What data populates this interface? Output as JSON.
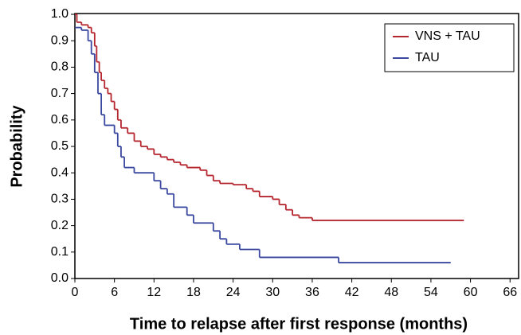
{
  "chart_data": {
    "type": "step",
    "xlabel": "Time to relapse after first response (months)",
    "ylabel": "Probability",
    "xlim": [
      0,
      67.3
    ],
    "ylim": [
      0,
      1
    ],
    "xticks": [
      0,
      6,
      12,
      18,
      24,
      30,
      36,
      42,
      48,
      54,
      60,
      66
    ],
    "yticks": [
      {
        "value": 0,
        "label": "0.0"
      },
      0.1,
      0.2,
      0.3,
      0.4,
      0.5,
      0.6,
      0.7,
      0.8,
      0.9,
      {
        "value": 1,
        "label": "1.0"
      }
    ],
    "legend": "upper right",
    "series": [
      {
        "name": "VNS + TAU",
        "color": "#b5262f",
        "x": [
          0,
          0.3,
          1,
          2,
          2.5,
          3,
          3.3,
          3.7,
          4,
          4.5,
          5,
          5.5,
          6,
          6.5,
          7,
          8,
          9,
          10,
          11,
          12,
          13,
          14,
          15,
          16,
          17,
          19,
          20,
          21,
          22,
          24,
          26,
          27,
          28,
          30,
          31,
          32,
          33,
          34,
          36,
          59
        ],
        "values": [
          1.0,
          0.97,
          0.96,
          0.95,
          0.93,
          0.88,
          0.82,
          0.78,
          0.75,
          0.72,
          0.7,
          0.67,
          0.64,
          0.6,
          0.57,
          0.55,
          0.52,
          0.5,
          0.49,
          0.47,
          0.46,
          0.45,
          0.44,
          0.43,
          0.42,
          0.41,
          0.39,
          0.37,
          0.36,
          0.355,
          0.34,
          0.33,
          0.31,
          0.3,
          0.28,
          0.26,
          0.24,
          0.23,
          0.22,
          0.22
        ]
      },
      {
        "name": "TAU",
        "color": "#3a48a0",
        "x": [
          0,
          1,
          2,
          2.5,
          3,
          3.5,
          4,
          4.5,
          6,
          6.5,
          7,
          7.5,
          9,
          12,
          13,
          14,
          15,
          17,
          18,
          21,
          22,
          23,
          25,
          28,
          40,
          57
        ],
        "values": [
          0.95,
          0.94,
          0.9,
          0.85,
          0.78,
          0.7,
          0.62,
          0.58,
          0.55,
          0.5,
          0.46,
          0.42,
          0.4,
          0.37,
          0.34,
          0.32,
          0.27,
          0.24,
          0.21,
          0.18,
          0.15,
          0.13,
          0.11,
          0.08,
          0.06,
          0.06
        ]
      }
    ]
  }
}
